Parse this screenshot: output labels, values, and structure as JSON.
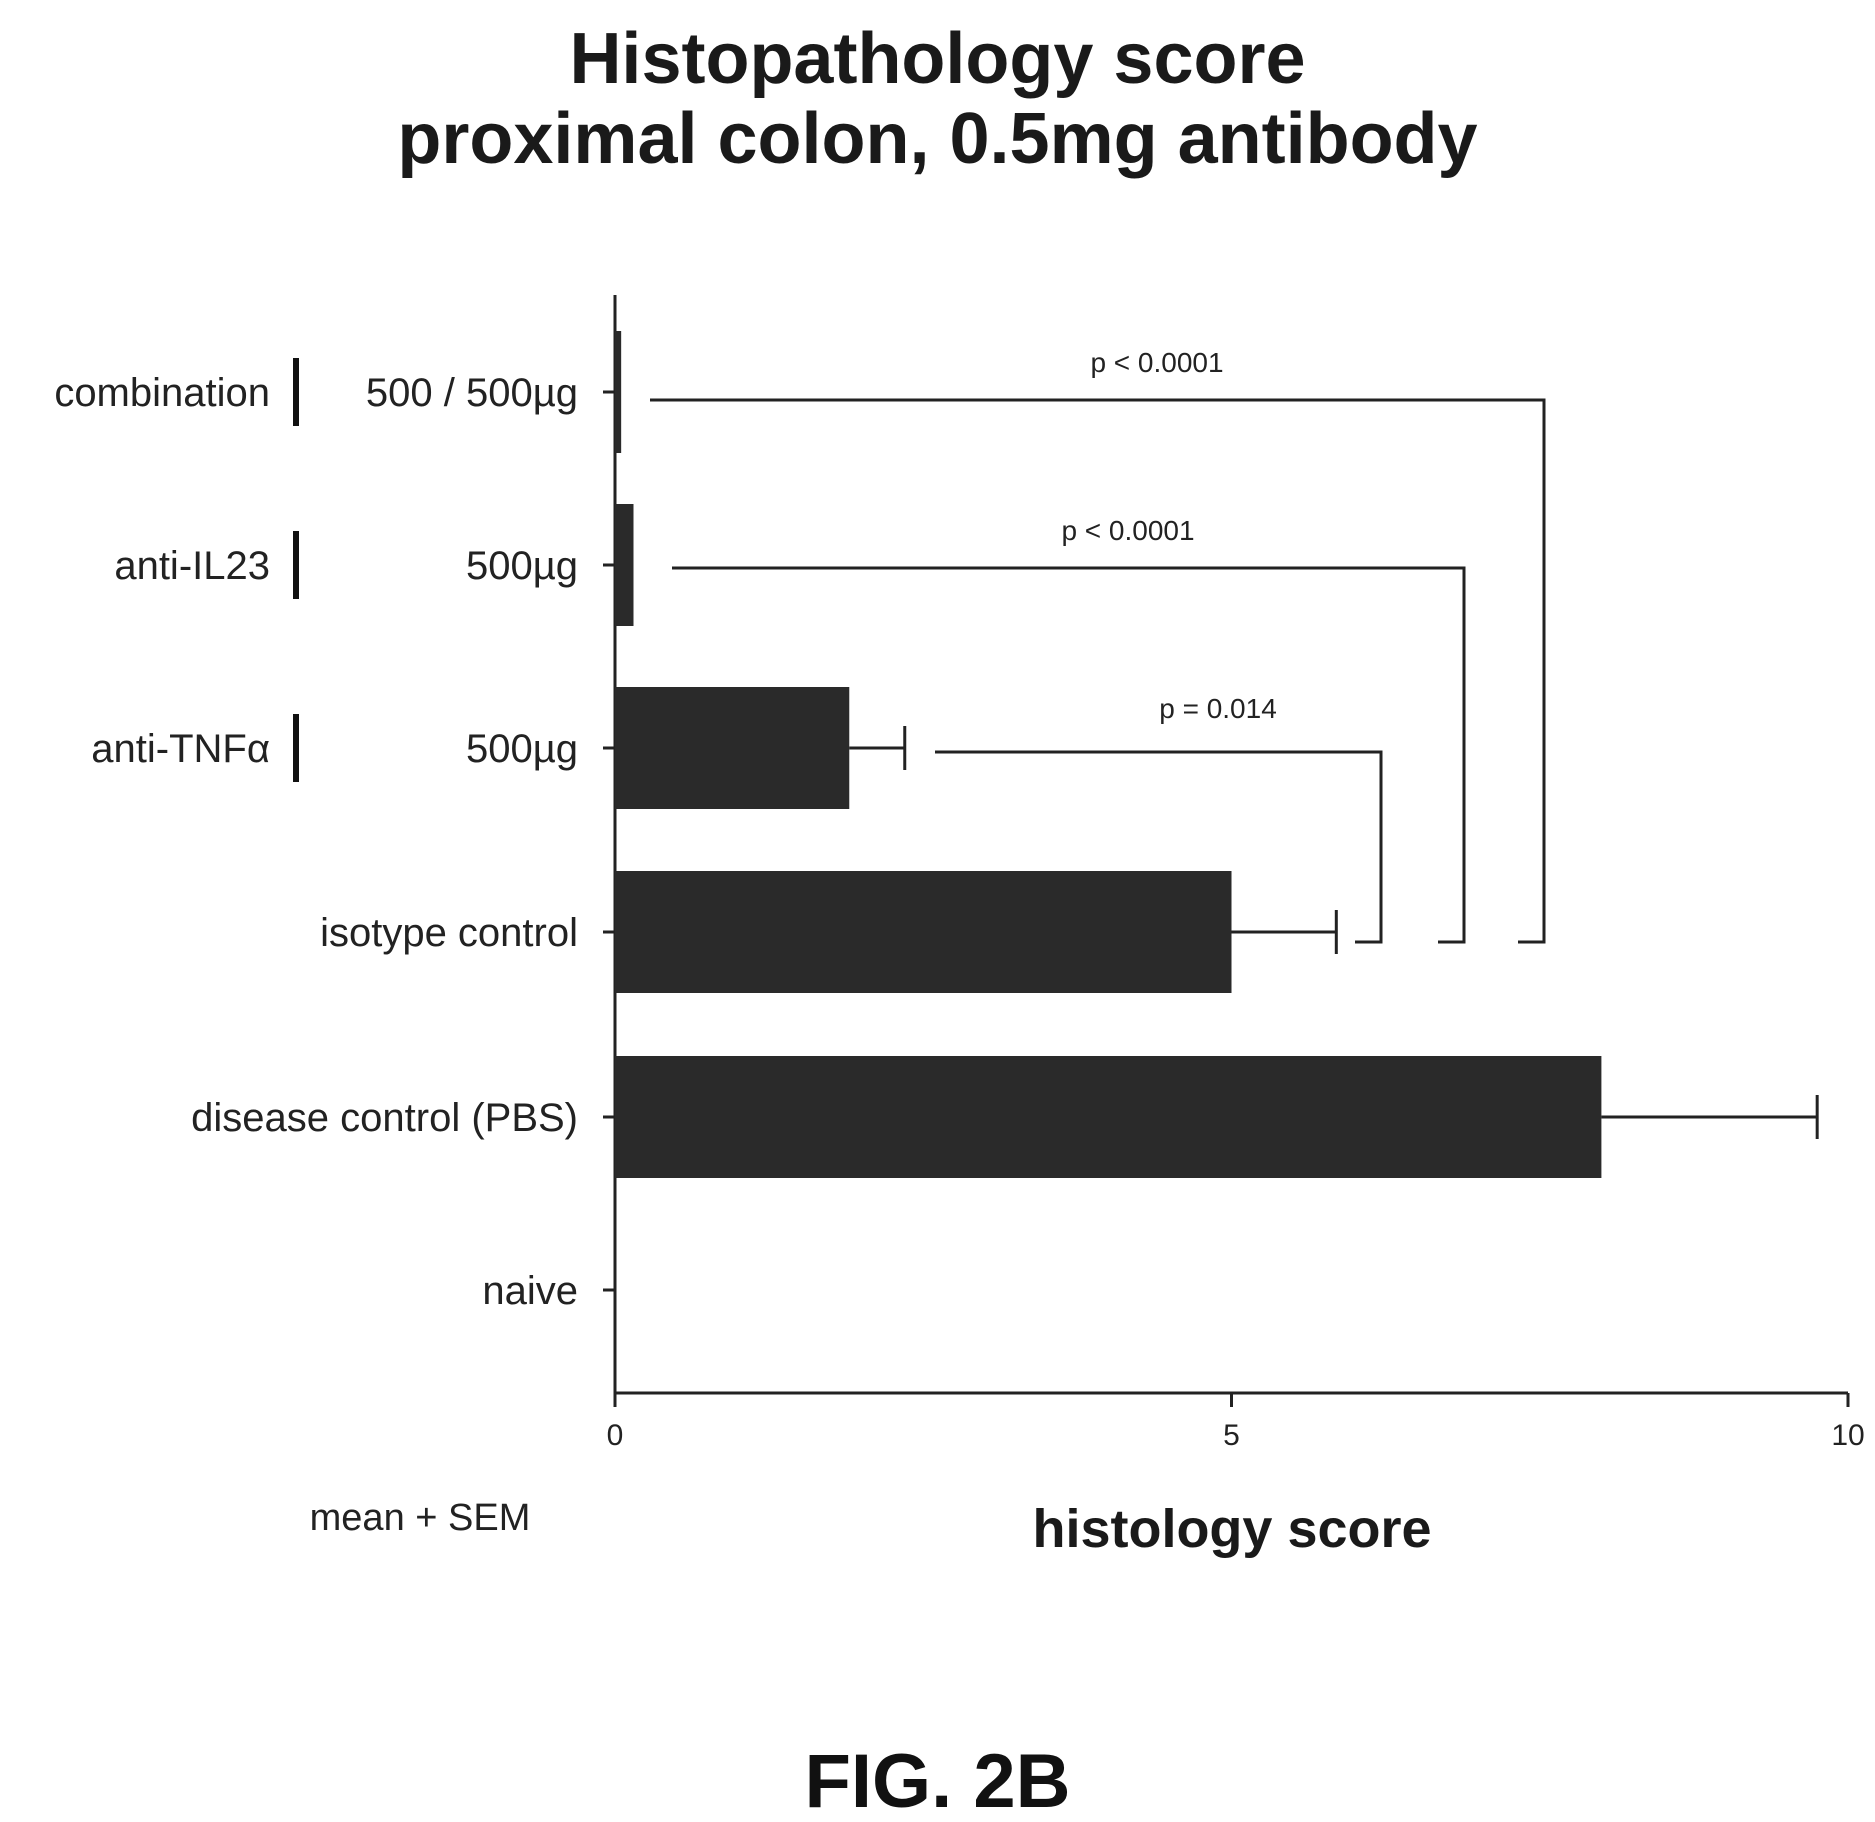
{
  "title": [
    "Histopathology score",
    "proximal colon, 0.5mg antibody"
  ],
  "figure_label": "FIG. 2B",
  "note": "mean + SEM",
  "chart_data": {
    "type": "bar",
    "orientation": "horizontal",
    "xlabel": "histology score",
    "xlim": [
      0,
      10
    ],
    "xticks": [
      0,
      5,
      10
    ],
    "grid": false,
    "bar_color": "#2a2a2a",
    "categories": [
      {
        "group": "combination",
        "dose": "500 / 500µg",
        "value": 0.05,
        "sem": 0.0
      },
      {
        "group": "anti-IL23",
        "dose": "500µg",
        "value": 0.15,
        "sem": 0.0
      },
      {
        "group": "anti-TNFα",
        "dose": "500µg",
        "value": 1.9,
        "sem": 0.45
      },
      {
        "group": "",
        "dose": "isotype control",
        "value": 5.0,
        "sem": 0.85
      },
      {
        "group": "",
        "dose": "disease control (PBS)",
        "value": 8.0,
        "sem": 1.75
      },
      {
        "group": "",
        "dose": "naive",
        "value": 0.0,
        "sem": 0.0
      }
    ],
    "annotations": [
      {
        "label": "p < 0.0001",
        "from": "combination",
        "to": "isotype control"
      },
      {
        "label": "p < 0.0001",
        "from": "anti-IL23",
        "to": "isotype control"
      },
      {
        "label": "p = 0.014",
        "from": "anti-TNFα",
        "to": "isotype control"
      }
    ]
  }
}
